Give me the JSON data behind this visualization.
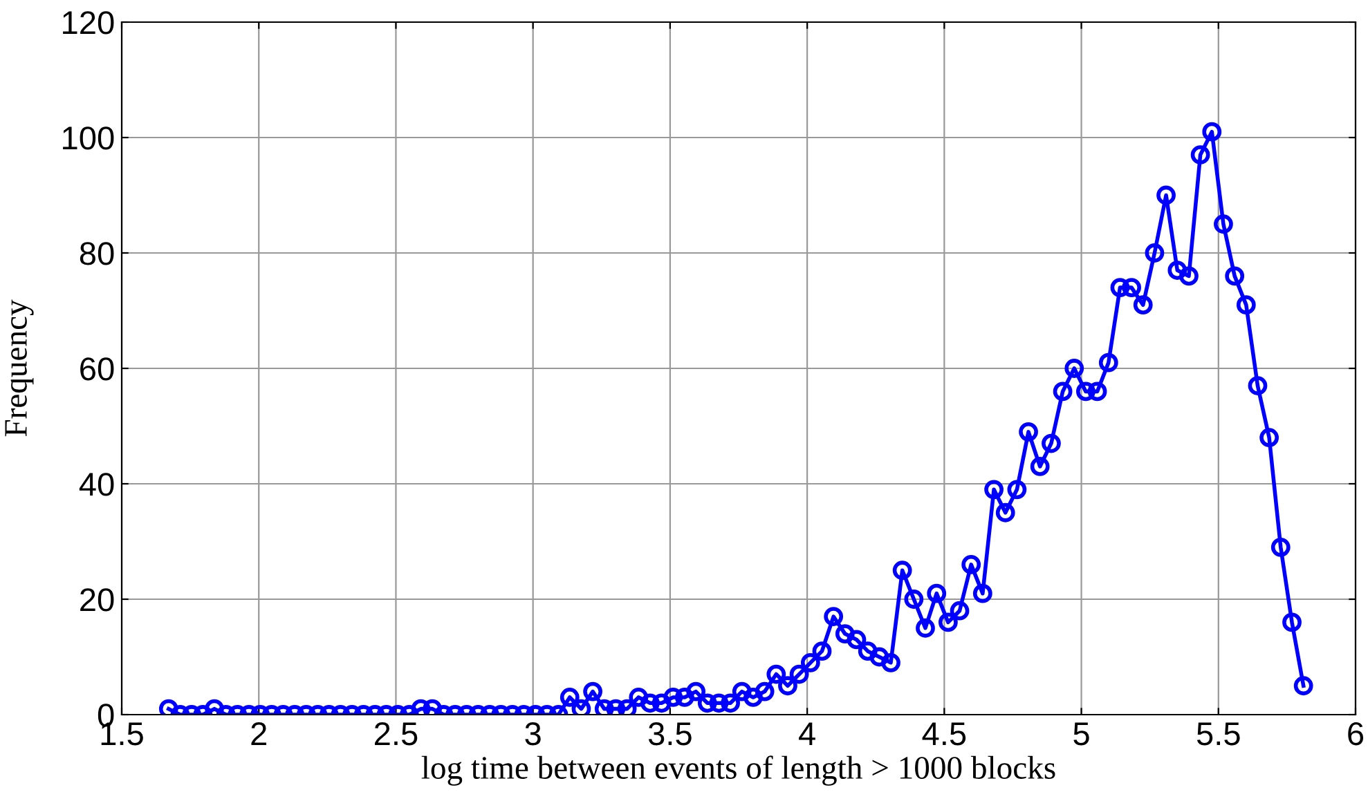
{
  "chart_data": {
    "type": "line",
    "xlabel": "log time between events of length > 1000 blocks",
    "ylabel": "Frequency",
    "x": [
      1.671,
      1.713,
      1.755,
      1.796,
      1.838,
      1.88,
      1.922,
      1.964,
      2.005,
      2.047,
      2.089,
      2.131,
      2.173,
      2.215,
      2.256,
      2.298,
      2.34,
      2.382,
      2.424,
      2.465,
      2.507,
      2.549,
      2.591,
      2.633,
      2.674,
      2.716,
      2.758,
      2.8,
      2.842,
      2.883,
      2.925,
      2.967,
      3.009,
      3.051,
      3.093,
      3.134,
      3.176,
      3.218,
      3.26,
      3.302,
      3.343,
      3.385,
      3.427,
      3.469,
      3.511,
      3.553,
      3.594,
      3.636,
      3.678,
      3.72,
      3.762,
      3.803,
      3.845,
      3.887,
      3.929,
      3.971,
      4.012,
      4.054,
      4.096,
      4.138,
      4.18,
      4.221,
      4.263,
      4.305,
      4.347,
      4.389,
      4.431,
      4.472,
      4.514,
      4.556,
      4.598,
      4.64,
      4.681,
      4.723,
      4.765,
      4.807,
      4.849,
      4.89,
      4.932,
      4.974,
      5.016,
      5.058,
      5.099,
      5.141,
      5.183,
      5.225,
      5.267,
      5.309,
      5.35,
      5.392,
      5.434,
      5.476,
      5.518,
      5.559,
      5.601,
      5.643,
      5.685,
      5.727,
      5.768,
      5.81
    ],
    "series": [
      {
        "color": "#0000ff",
        "values": [
          1,
          0,
          0,
          0,
          1,
          0,
          0,
          0,
          0,
          0,
          0,
          0,
          0,
          0,
          0,
          0,
          0,
          0,
          0,
          0,
          0,
          0,
          1,
          1,
          0,
          0,
          0,
          0,
          0,
          0,
          0,
          0,
          0,
          0,
          0,
          3,
          1,
          4,
          1,
          1,
          1,
          3,
          2,
          2,
          3,
          3,
          4,
          2,
          2,
          2,
          4,
          3,
          4,
          7,
          5,
          7,
          9,
          11,
          17,
          14,
          13,
          11,
          10,
          9,
          25,
          20,
          15,
          21,
          16,
          18,
          26,
          21,
          39,
          35,
          39,
          49,
          43,
          47,
          56,
          60,
          56,
          56,
          61,
          74,
          74,
          71,
          80,
          90,
          77,
          76,
          97,
          101,
          85,
          76,
          71,
          57,
          48,
          29,
          16,
          5
        ]
      }
    ],
    "xlim": [
      1.5,
      6
    ],
    "xticks": [
      1.5,
      2,
      2.5,
      3,
      3.5,
      4,
      4.5,
      5,
      5.5,
      6
    ],
    "ylim": [
      0,
      120
    ],
    "yticks": [
      0,
      20,
      40,
      60,
      80,
      100,
      120
    ],
    "grid": true,
    "marker": "circle",
    "line_style": "solid"
  }
}
